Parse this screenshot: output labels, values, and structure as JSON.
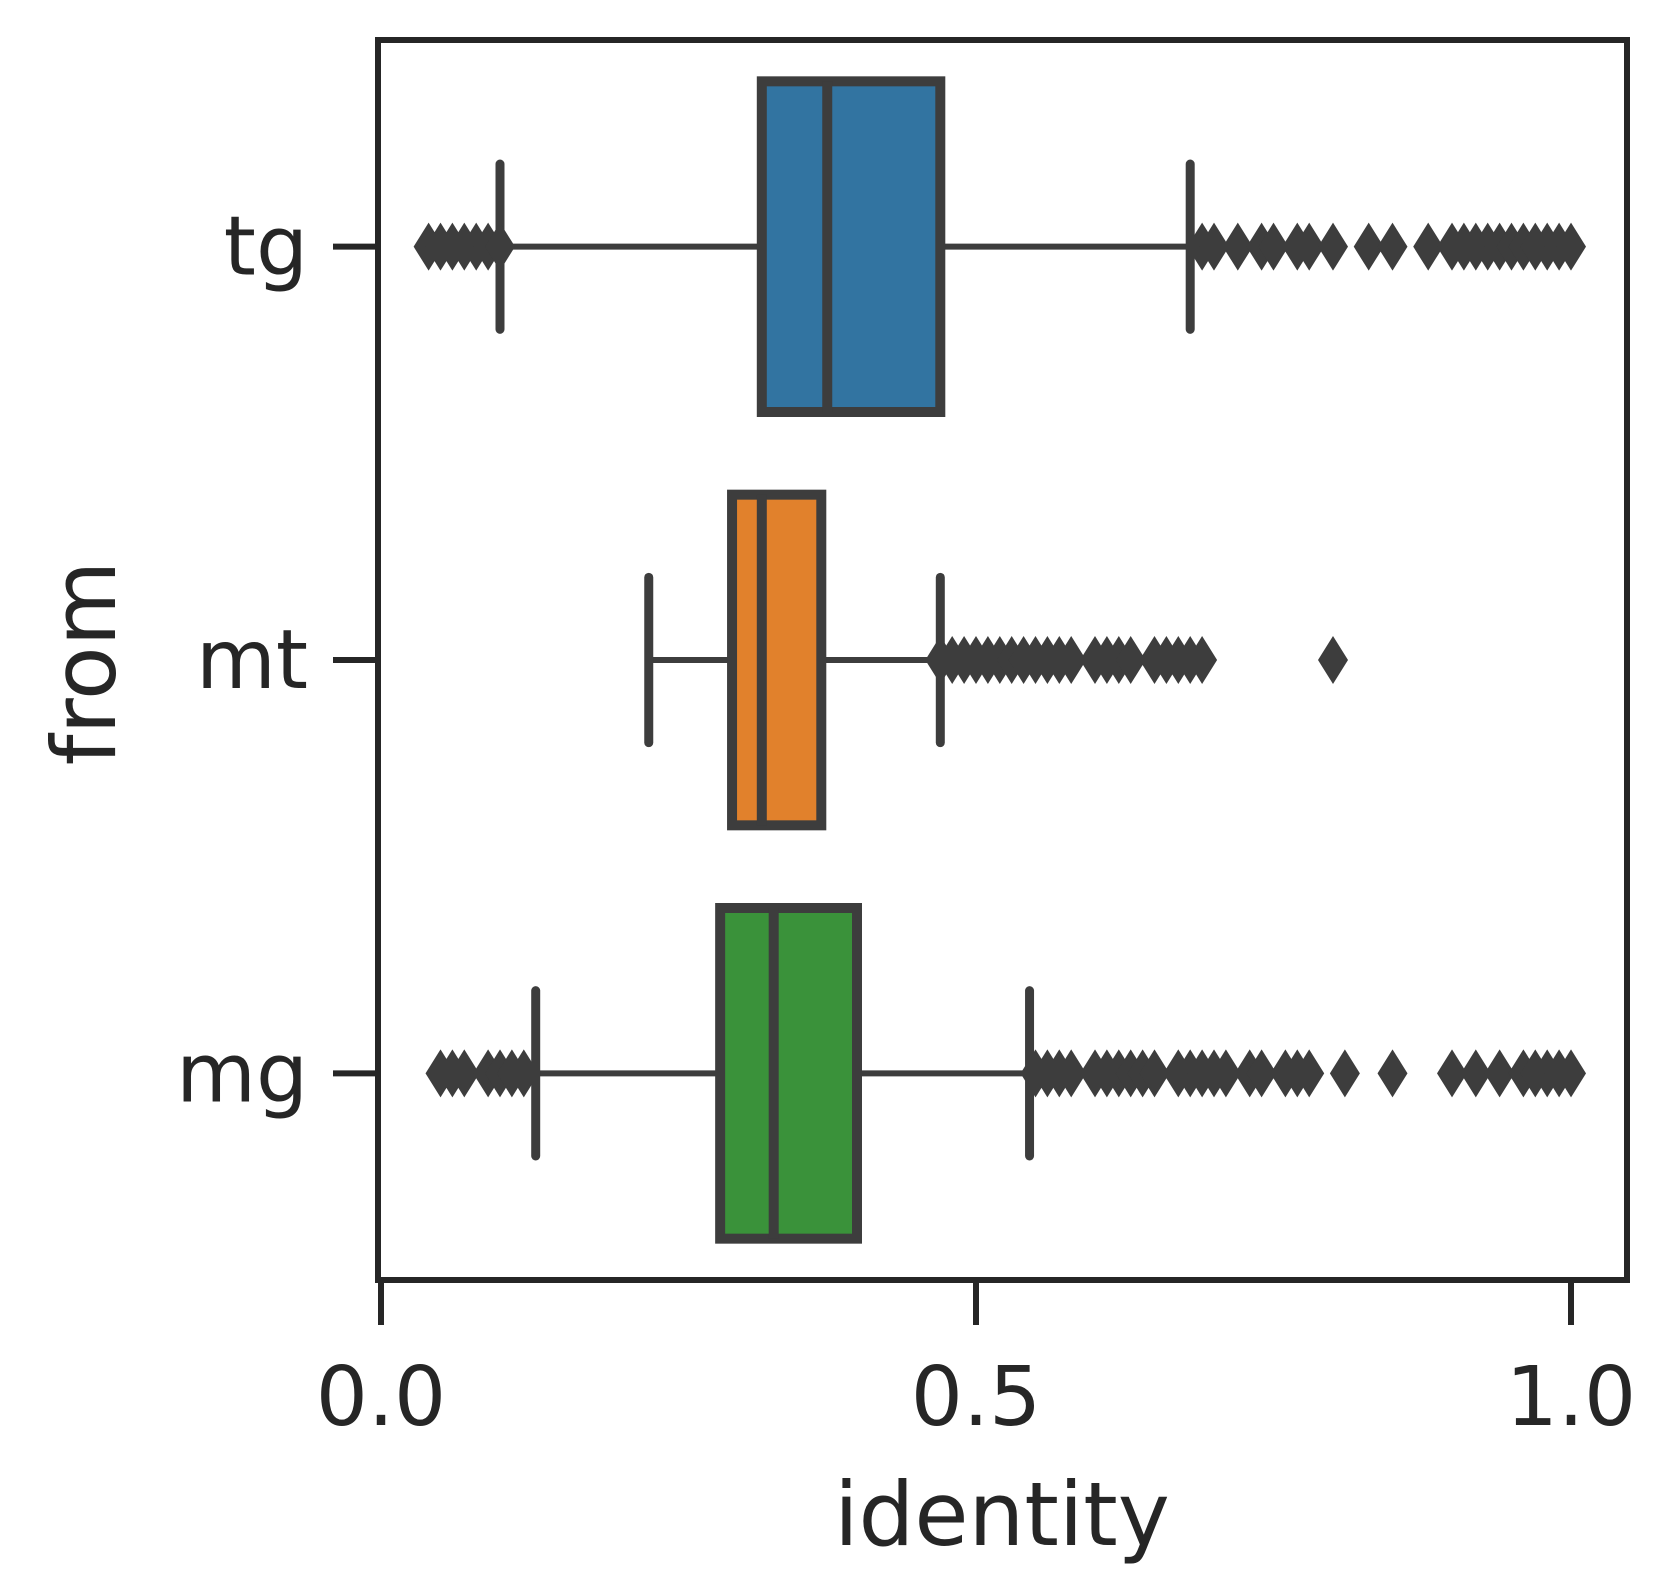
{
  "chart_data": {
    "type": "boxplot",
    "orientation": "horizontal",
    "xlabel": "identity",
    "ylabel": "from",
    "xlim": [
      0.0,
      1.05
    ],
    "xticks": [
      0.0,
      0.5,
      1.0
    ],
    "xtick_labels": [
      "0.0",
      "0.5",
      "1.0"
    ],
    "grid": false,
    "series": [
      {
        "name": "tg",
        "color": "#3274a1",
        "whisker_low": 0.1,
        "q1": 0.32,
        "median": 0.375,
        "q3": 0.47,
        "whisker_high": 0.68,
        "outliers": [
          0.04,
          0.05,
          0.06,
          0.07,
          0.08,
          0.09,
          0.1,
          0.69,
          0.7,
          0.72,
          0.74,
          0.75,
          0.77,
          0.78,
          0.8,
          0.83,
          0.85,
          0.88,
          0.9,
          0.91,
          0.92,
          0.93,
          0.94,
          0.95,
          0.96,
          0.97,
          0.98,
          0.99,
          1.0
        ]
      },
      {
        "name": "mt",
        "color": "#e1812c",
        "whisker_low": 0.225,
        "q1": 0.295,
        "median": 0.32,
        "q3": 0.37,
        "whisker_high": 0.47,
        "outliers": [
          0.47,
          0.48,
          0.49,
          0.5,
          0.51,
          0.52,
          0.53,
          0.54,
          0.55,
          0.56,
          0.57,
          0.58,
          0.6,
          0.61,
          0.62,
          0.63,
          0.65,
          0.66,
          0.67,
          0.68,
          0.69,
          0.8
        ]
      },
      {
        "name": "mg",
        "color": "#3a923a",
        "whisker_low": 0.13,
        "q1": 0.285,
        "median": 0.33,
        "q3": 0.4,
        "whisker_high": 0.545,
        "outliers": [
          0.05,
          0.06,
          0.07,
          0.09,
          0.1,
          0.11,
          0.12,
          0.55,
          0.56,
          0.57,
          0.58,
          0.6,
          0.61,
          0.62,
          0.63,
          0.64,
          0.65,
          0.67,
          0.68,
          0.69,
          0.7,
          0.71,
          0.73,
          0.74,
          0.76,
          0.77,
          0.78,
          0.81,
          0.85,
          0.9,
          0.92,
          0.94,
          0.96,
          0.97,
          0.98,
          0.99,
          1.0
        ]
      }
    ]
  }
}
